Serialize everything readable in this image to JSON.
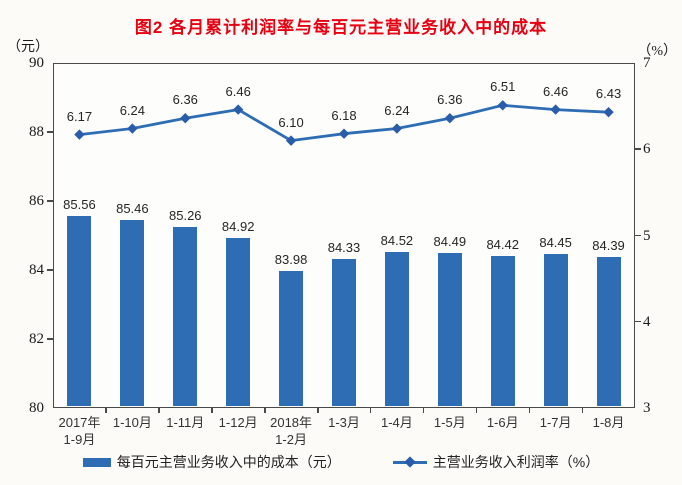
{
  "chart_data": {
    "type": "combo-bar-line",
    "title": "图2  各月累计利润率与每百元主营业务收入中的成本",
    "categories": [
      "2017年\n1-9月",
      "1-10月",
      "1-11月",
      "1-12月",
      "2018年\n1-2月",
      "1-3月",
      "1-4月",
      "1-5月",
      "1-6月",
      "1-7月",
      "1-8月"
    ],
    "series": [
      {
        "name": "每百元主营业务收入中的成本（元）",
        "type": "bar",
        "axis": "left",
        "values": [
          85.56,
          85.46,
          85.26,
          84.92,
          83.98,
          84.33,
          84.52,
          84.49,
          84.42,
          84.45,
          84.39
        ]
      },
      {
        "name": "主营业务收入利润率（%）",
        "type": "line",
        "axis": "right",
        "values": [
          6.17,
          6.24,
          6.36,
          6.46,
          6.1,
          6.18,
          6.24,
          6.36,
          6.51,
          6.46,
          6.43
        ]
      }
    ],
    "left_axis": {
      "label": "（元）",
      "min": 80,
      "max": 90,
      "ticks": [
        90,
        88,
        86,
        84,
        82,
        80
      ]
    },
    "right_axis": {
      "label": "（%）",
      "min": 3,
      "max": 7,
      "ticks": [
        7,
        6,
        5,
        4,
        3
      ]
    },
    "legend_position": "bottom",
    "grid": false,
    "colors": {
      "bar": "#2e6db4",
      "line": "#2e6db4",
      "marker": "#2a5caa",
      "title": "#e60012",
      "axis": "#4a4a4a"
    }
  }
}
